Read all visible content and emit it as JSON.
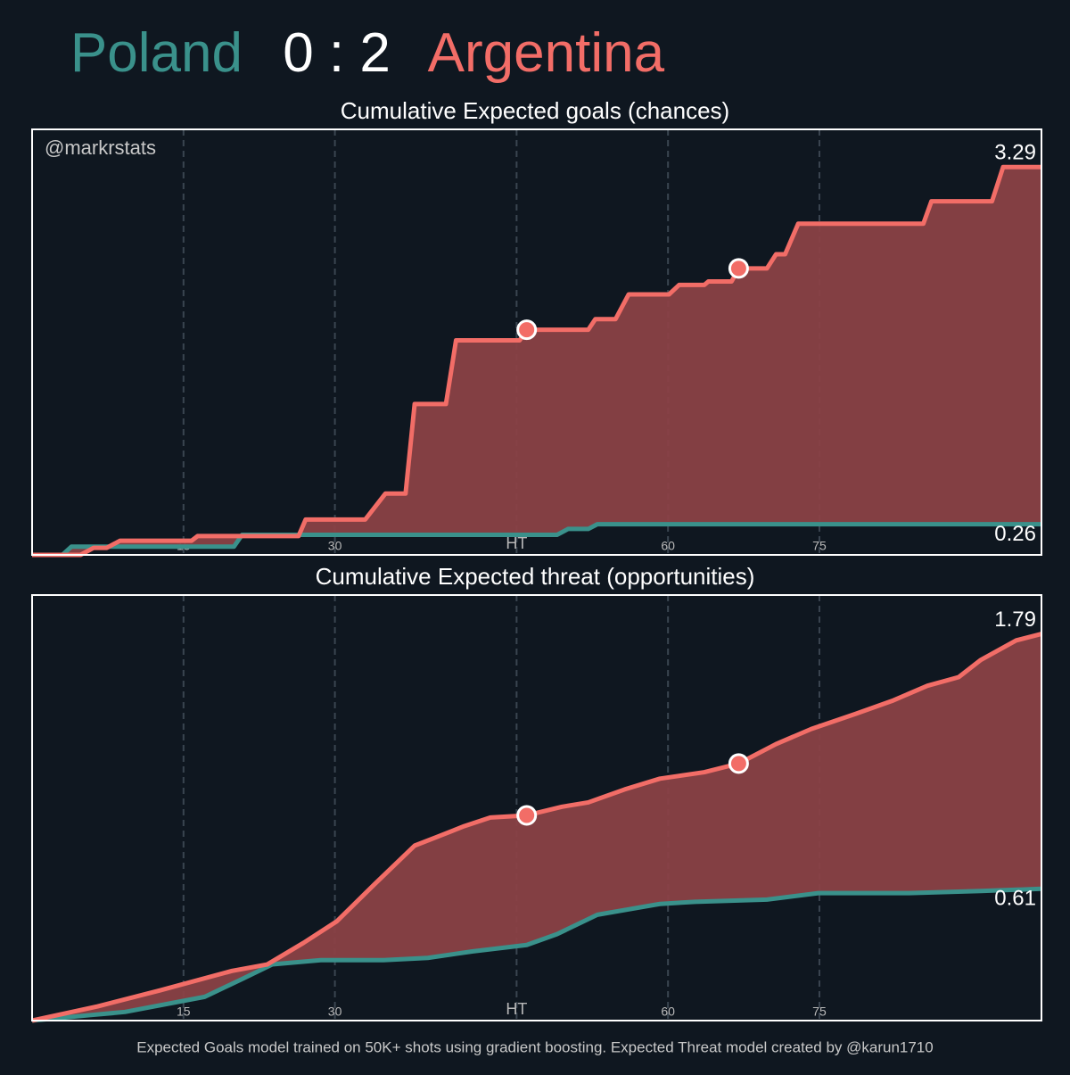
{
  "title": {
    "home": "Poland",
    "score": "0 : 2",
    "away": "Argentina"
  },
  "watermark": "@markrstats",
  "footnote": "Expected Goals model trained on 50K+ shots using gradient boosting. Expected Threat model created by @karun1710",
  "chart_data": [
    {
      "type": "line",
      "title": "Cumulative Expected goals (chances)",
      "xlim": [
        0,
        100
      ],
      "ylim": [
        0,
        3.61
      ],
      "xticks": [
        15,
        30,
        {
          "value": 48,
          "label": "HT"
        },
        {
          "value": 63,
          "label": "60"
        },
        {
          "value": 78,
          "label": "75"
        }
      ],
      "grid": true,
      "fill_color": "#8a4146",
      "series": [
        {
          "name": "Poland",
          "color": "#3a918b",
          "x": [
            0,
            3.0,
            3.9,
            20.0,
            20.8,
            52.0,
            53.1,
            55.1,
            56.0,
            100
          ],
          "values": [
            0,
            0,
            0.07,
            0.07,
            0.17,
            0.17,
            0.22,
            0.22,
            0.26,
            0.26
          ]
        },
        {
          "name": "Argentina",
          "color": "#f26d67",
          "x": [
            0,
            4.8,
            6.1,
            7.4,
            8.7,
            15.8,
            16.4,
            26.4,
            27.1,
            33.0,
            35.0,
            37.0,
            37.9,
            41.0,
            42.0,
            48.3,
            49.0,
            55.1,
            55.8,
            57.8,
            59.1,
            63.1,
            64.1,
            66.6,
            67.0,
            69.3,
            70.0,
            72.8,
            73.7,
            74.6,
            75.9,
            88.3,
            89.1,
            95.1,
            96.2,
            100
          ],
          "values": [
            0,
            0,
            0.06,
            0.06,
            0.12,
            0.12,
            0.16,
            0.16,
            0.3,
            0.3,
            0.52,
            0.52,
            1.28,
            1.28,
            1.82,
            1.82,
            1.91,
            1.91,
            2.0,
            2.0,
            2.21,
            2.21,
            2.29,
            2.29,
            2.32,
            2.32,
            2.43,
            2.43,
            2.55,
            2.55,
            2.81,
            2.81,
            3.0,
            3.0,
            3.29,
            3.29
          ]
        }
      ],
      "markers": {
        "color": "#f26d67",
        "x": [
          49.0,
          70.0
        ],
        "values": [
          1.91,
          2.43
        ]
      }
    },
    {
      "type": "line",
      "title": "Cumulative Expected threat (opportunities)",
      "xlim": [
        0,
        100
      ],
      "ylim": [
        0,
        1.97
      ],
      "xticks": [
        15,
        30,
        {
          "value": 48,
          "label": "HT"
        },
        {
          "value": 63,
          "label": "60"
        },
        {
          "value": 78,
          "label": "75"
        }
      ],
      "grid": true,
      "fill_color": "#8a4146",
      "series": [
        {
          "name": "Poland",
          "color": "#3a918b",
          "x": [
            0,
            5.7,
            9.2,
            17.1,
            20.7,
            23.8,
            28.6,
            34.8,
            39.2,
            43.6,
            49.0,
            52.0,
            56.0,
            62.2,
            65.7,
            72.8,
            77.9,
            86.9,
            94.0,
            100
          ],
          "values": [
            0,
            0.025,
            0.04,
            0.11,
            0.19,
            0.26,
            0.28,
            0.28,
            0.29,
            0.32,
            0.35,
            0.4,
            0.49,
            0.54,
            0.55,
            0.56,
            0.59,
            0.59,
            0.6,
            0.61
          ]
        },
        {
          "name": "Argentina",
          "color": "#f26d67",
          "x": [
            0,
            6.5,
            12.7,
            19.8,
            23.3,
            26.9,
            30.2,
            33.9,
            37.9,
            40.1,
            42.8,
            45.4,
            49.0,
            52.5,
            55.1,
            58.7,
            62.2,
            66.6,
            70.0,
            73.7,
            77.2,
            81.6,
            85.2,
            88.7,
            91.8,
            94.0,
            97.5,
            100
          ],
          "values": [
            0,
            0.066,
            0.14,
            0.23,
            0.26,
            0.36,
            0.46,
            0.63,
            0.81,
            0.85,
            0.9,
            0.94,
            0.95,
            0.99,
            1.01,
            1.07,
            1.12,
            1.15,
            1.19,
            1.28,
            1.35,
            1.42,
            1.48,
            1.55,
            1.59,
            1.67,
            1.76,
            1.79
          ]
        }
      ],
      "markers": {
        "color": "#f26d67",
        "x": [
          49.0,
          70.0
        ],
        "values": [
          0.95,
          1.19
        ]
      }
    }
  ]
}
